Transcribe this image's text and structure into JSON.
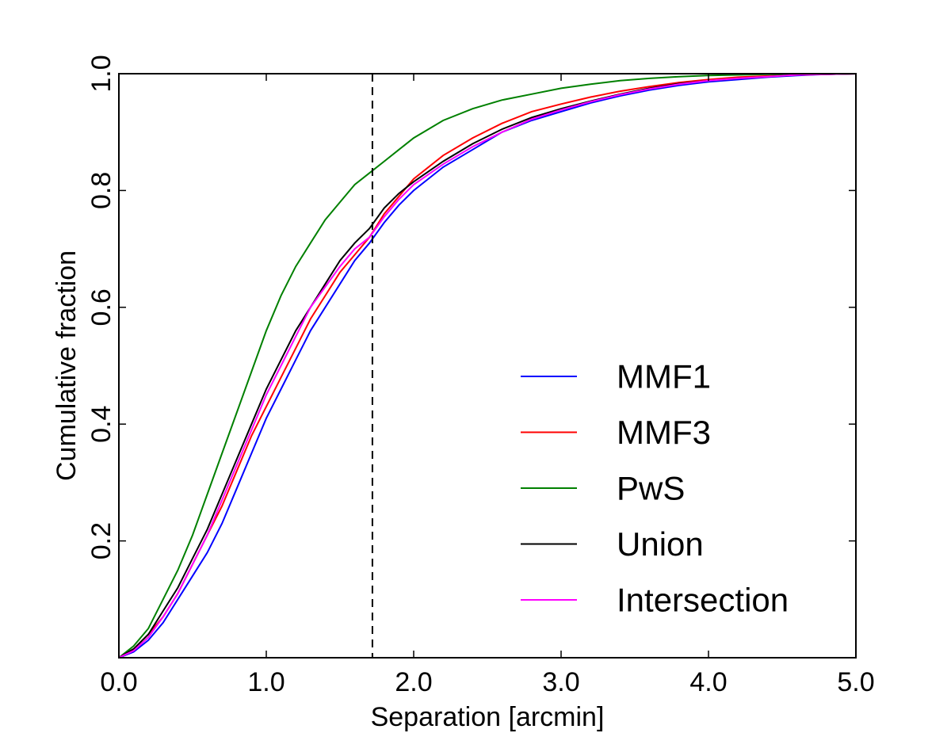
{
  "chart_data": {
    "type": "line",
    "title": "",
    "xlabel": "Separation [arcmin]",
    "ylabel": "Cumulative fraction",
    "xlim": [
      0.0,
      5.0
    ],
    "ylim": [
      0.0,
      1.0
    ],
    "xticks": [
      "0.0",
      "1.0",
      "2.0",
      "3.0",
      "4.0",
      "5.0"
    ],
    "yticks": [
      "0.2",
      "0.4",
      "0.6",
      "0.8",
      "1.0"
    ],
    "grid": false,
    "legend_position": "lower-right",
    "reference_line": {
      "x": 1.72,
      "style": "dashed",
      "color": "#000000"
    },
    "series": [
      {
        "name": "MMF1",
        "color": "#0000ff",
        "x": [
          0,
          0.1,
          0.2,
          0.3,
          0.4,
          0.5,
          0.6,
          0.7,
          0.8,
          0.9,
          1.0,
          1.1,
          1.2,
          1.3,
          1.4,
          1.5,
          1.6,
          1.7,
          1.8,
          1.9,
          2.0,
          2.2,
          2.4,
          2.6,
          2.8,
          3.0,
          3.2,
          3.4,
          3.6,
          3.8,
          4.0,
          4.2,
          4.4,
          4.6,
          4.8,
          5.0
        ],
        "y": [
          0,
          0.01,
          0.03,
          0.06,
          0.1,
          0.14,
          0.18,
          0.23,
          0.29,
          0.35,
          0.41,
          0.46,
          0.51,
          0.56,
          0.6,
          0.64,
          0.68,
          0.71,
          0.745,
          0.775,
          0.8,
          0.84,
          0.87,
          0.9,
          0.92,
          0.935,
          0.95,
          0.962,
          0.972,
          0.98,
          0.986,
          0.99,
          0.994,
          0.997,
          0.999,
          1.0
        ]
      },
      {
        "name": "MMF3",
        "color": "#ff0000",
        "x": [
          0,
          0.1,
          0.2,
          0.3,
          0.4,
          0.5,
          0.6,
          0.7,
          0.8,
          0.9,
          1.0,
          1.1,
          1.2,
          1.3,
          1.4,
          1.5,
          1.6,
          1.7,
          1.8,
          1.9,
          2.0,
          2.2,
          2.4,
          2.6,
          2.8,
          3.0,
          3.2,
          3.4,
          3.6,
          3.8,
          4.0,
          4.2,
          4.4,
          4.6,
          4.8,
          5.0
        ],
        "y": [
          0,
          0.015,
          0.04,
          0.07,
          0.11,
          0.16,
          0.21,
          0.26,
          0.32,
          0.38,
          0.43,
          0.48,
          0.53,
          0.58,
          0.62,
          0.66,
          0.69,
          0.72,
          0.76,
          0.79,
          0.82,
          0.86,
          0.89,
          0.915,
          0.935,
          0.948,
          0.96,
          0.97,
          0.978,
          0.985,
          0.99,
          0.994,
          0.996,
          0.998,
          0.999,
          1.0
        ]
      },
      {
        "name": "PwS",
        "color": "#008000",
        "x": [
          0,
          0.1,
          0.2,
          0.3,
          0.4,
          0.5,
          0.6,
          0.7,
          0.8,
          0.9,
          1.0,
          1.1,
          1.2,
          1.3,
          1.4,
          1.5,
          1.6,
          1.7,
          1.8,
          1.9,
          2.0,
          2.2,
          2.4,
          2.6,
          2.8,
          3.0,
          3.2,
          3.4,
          3.6,
          3.8,
          4.0,
          4.2,
          4.4,
          4.6,
          4.8,
          5.0
        ],
        "y": [
          0,
          0.02,
          0.05,
          0.1,
          0.15,
          0.21,
          0.28,
          0.35,
          0.42,
          0.49,
          0.56,
          0.62,
          0.67,
          0.71,
          0.75,
          0.78,
          0.81,
          0.83,
          0.85,
          0.87,
          0.89,
          0.92,
          0.94,
          0.955,
          0.965,
          0.975,
          0.982,
          0.988,
          0.992,
          0.995,
          0.997,
          0.998,
          0.999,
          0.999,
          1.0,
          1.0
        ]
      },
      {
        "name": "Union",
        "color": "#000000",
        "x": [
          0,
          0.1,
          0.2,
          0.3,
          0.4,
          0.5,
          0.6,
          0.7,
          0.8,
          0.9,
          1.0,
          1.1,
          1.2,
          1.3,
          1.4,
          1.5,
          1.6,
          1.7,
          1.8,
          1.9,
          2.0,
          2.2,
          2.4,
          2.6,
          2.8,
          3.0,
          3.2,
          3.4,
          3.6,
          3.8,
          4.0,
          4.2,
          4.4,
          4.6,
          4.8,
          5.0
        ],
        "y": [
          0,
          0.015,
          0.04,
          0.08,
          0.12,
          0.17,
          0.22,
          0.28,
          0.34,
          0.4,
          0.46,
          0.51,
          0.56,
          0.6,
          0.64,
          0.68,
          0.71,
          0.735,
          0.77,
          0.795,
          0.815,
          0.85,
          0.88,
          0.905,
          0.925,
          0.94,
          0.953,
          0.965,
          0.975,
          0.983,
          0.988,
          0.992,
          0.995,
          0.998,
          0.999,
          1.0
        ]
      },
      {
        "name": "Intersection",
        "color": "#ff00ff",
        "x": [
          0,
          0.1,
          0.2,
          0.3,
          0.4,
          0.5,
          0.6,
          0.7,
          0.8,
          0.9,
          1.0,
          1.1,
          1.2,
          1.3,
          1.4,
          1.5,
          1.6,
          1.7,
          1.8,
          1.9,
          2.0,
          2.2,
          2.4,
          2.6,
          2.8,
          3.0,
          3.2,
          3.4,
          3.6,
          3.8,
          4.0,
          4.2,
          4.4,
          4.6,
          4.8,
          5.0
        ],
        "y": [
          0,
          0.012,
          0.035,
          0.07,
          0.11,
          0.16,
          0.21,
          0.27,
          0.33,
          0.39,
          0.45,
          0.5,
          0.55,
          0.6,
          0.635,
          0.67,
          0.7,
          0.72,
          0.755,
          0.785,
          0.81,
          0.845,
          0.875,
          0.9,
          0.922,
          0.938,
          0.952,
          0.964,
          0.974,
          0.982,
          0.988,
          0.992,
          0.995,
          0.998,
          0.999,
          1.0
        ]
      }
    ]
  }
}
